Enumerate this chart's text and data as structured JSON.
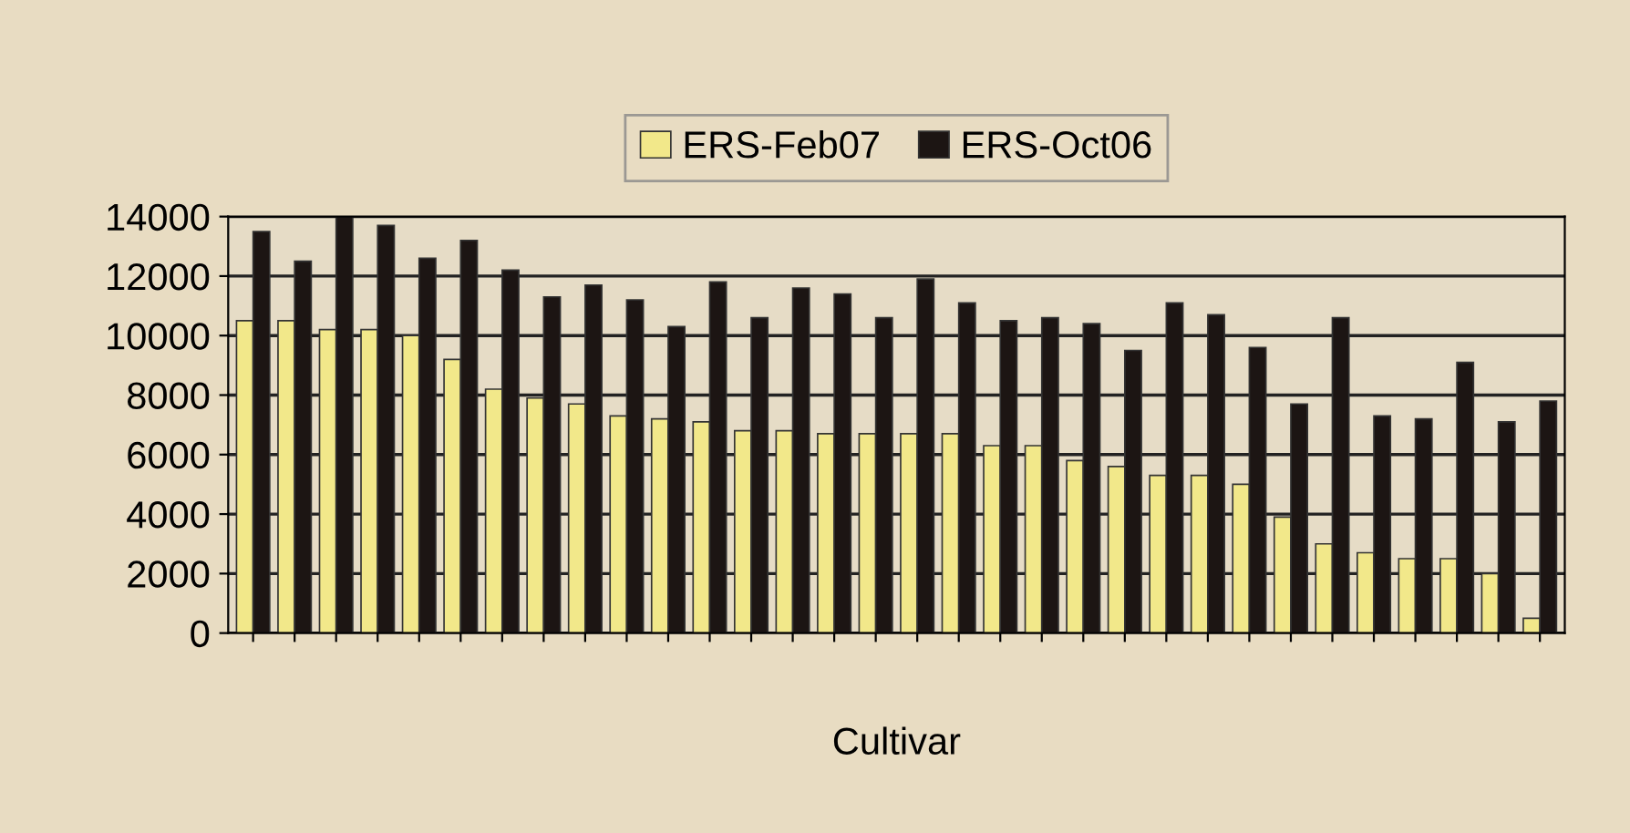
{
  "chart_data": {
    "type": "bar",
    "xlabel": "Cultivar",
    "categories": [
      null,
      null,
      null,
      null,
      null,
      null,
      null,
      null,
      null,
      null,
      null,
      null,
      null,
      null,
      null,
      null,
      null,
      null,
      null,
      null,
      null,
      null,
      null,
      null,
      null,
      null,
      null,
      null,
      null,
      null,
      null,
      null
    ],
    "series": [
      {
        "name": "ERS-Feb07",
        "color": "#f2e88a",
        "values": [
          10500,
          10500,
          10200,
          10200,
          10000,
          9200,
          8200,
          7900,
          7700,
          7300,
          7200,
          7100,
          6800,
          6800,
          6700,
          6700,
          6700,
          6700,
          6300,
          6300,
          5800,
          5600,
          5300,
          5300,
          5000,
          3900,
          3000,
          2700,
          2500,
          2500,
          2000,
          500
        ]
      },
      {
        "name": "ERS-Oct06",
        "color": "#1c1513",
        "values": [
          13500,
          12500,
          14000,
          13700,
          12600,
          13200,
          12200,
          11300,
          11700,
          11200,
          10300,
          11800,
          10600,
          11600,
          11400,
          10600,
          11900,
          11100,
          10500,
          10600,
          10400,
          9500,
          11100,
          10700,
          9600,
          7700,
          10600,
          7300,
          7200,
          9100,
          7100,
          7800
        ]
      }
    ],
    "ylim": [
      0,
      14000
    ],
    "yticks": [
      0,
      2000,
      4000,
      6000,
      8000,
      10000,
      12000,
      14000
    ],
    "grid": "y",
    "legend": "top"
  }
}
